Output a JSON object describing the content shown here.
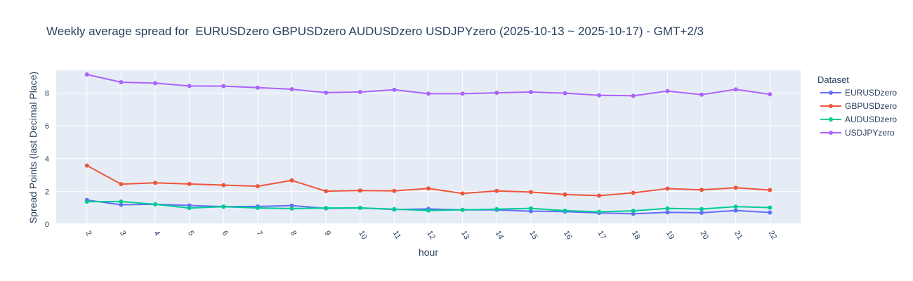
{
  "chart_data": {
    "type": "line",
    "title": "Weekly average spread for  EURUSDzero GBPUSDzero AUDUSDzero USDJPYzero (2025-10-13 ~ 2025-10-17) - GMT+2/3",
    "xlabel": "hour",
    "ylabel": "Spread Points (last Decimal Place)",
    "x": [
      2,
      3,
      4,
      5,
      6,
      7,
      8,
      9,
      10,
      11,
      12,
      13,
      14,
      15,
      16,
      17,
      18,
      19,
      20,
      21,
      22
    ],
    "ylim": [
      0,
      9.4
    ],
    "yticks": [
      0,
      2,
      4,
      6,
      8
    ],
    "grid": true,
    "legend_title": "Dataset",
    "legend_position": "right",
    "series": [
      {
        "name": "EURUSDzero",
        "color": "#636efa",
        "values": [
          1.47,
          1.18,
          1.21,
          1.14,
          1.07,
          1.08,
          1.13,
          0.96,
          0.99,
          0.89,
          0.93,
          0.87,
          0.87,
          0.79,
          0.76,
          0.68,
          0.63,
          0.72,
          0.69,
          0.83,
          0.71
        ]
      },
      {
        "name": "GBPUSDzero",
        "color": "#ef553b",
        "values": [
          3.58,
          2.44,
          2.52,
          2.45,
          2.38,
          2.31,
          2.67,
          2.01,
          2.05,
          2.03,
          2.18,
          1.87,
          2.03,
          1.96,
          1.81,
          1.74,
          1.91,
          2.17,
          2.09,
          2.22,
          2.08
        ]
      },
      {
        "name": "AUDUSDzero",
        "color": "#00cc96",
        "values": [
          1.37,
          1.38,
          1.21,
          0.98,
          1.06,
          0.99,
          0.95,
          0.98,
          0.99,
          0.91,
          0.83,
          0.87,
          0.91,
          0.96,
          0.82,
          0.75,
          0.81,
          0.96,
          0.92,
          1.07,
          1.01
        ]
      },
      {
        "name": "USDJPYzero",
        "color": "#ab63fa",
        "values": [
          9.14,
          8.67,
          8.61,
          8.44,
          8.43,
          8.34,
          8.24,
          8.03,
          8.07,
          8.21,
          7.97,
          7.97,
          8.02,
          8.07,
          8.0,
          7.87,
          7.84,
          8.13,
          7.91,
          8.23,
          7.93
        ]
      }
    ]
  }
}
